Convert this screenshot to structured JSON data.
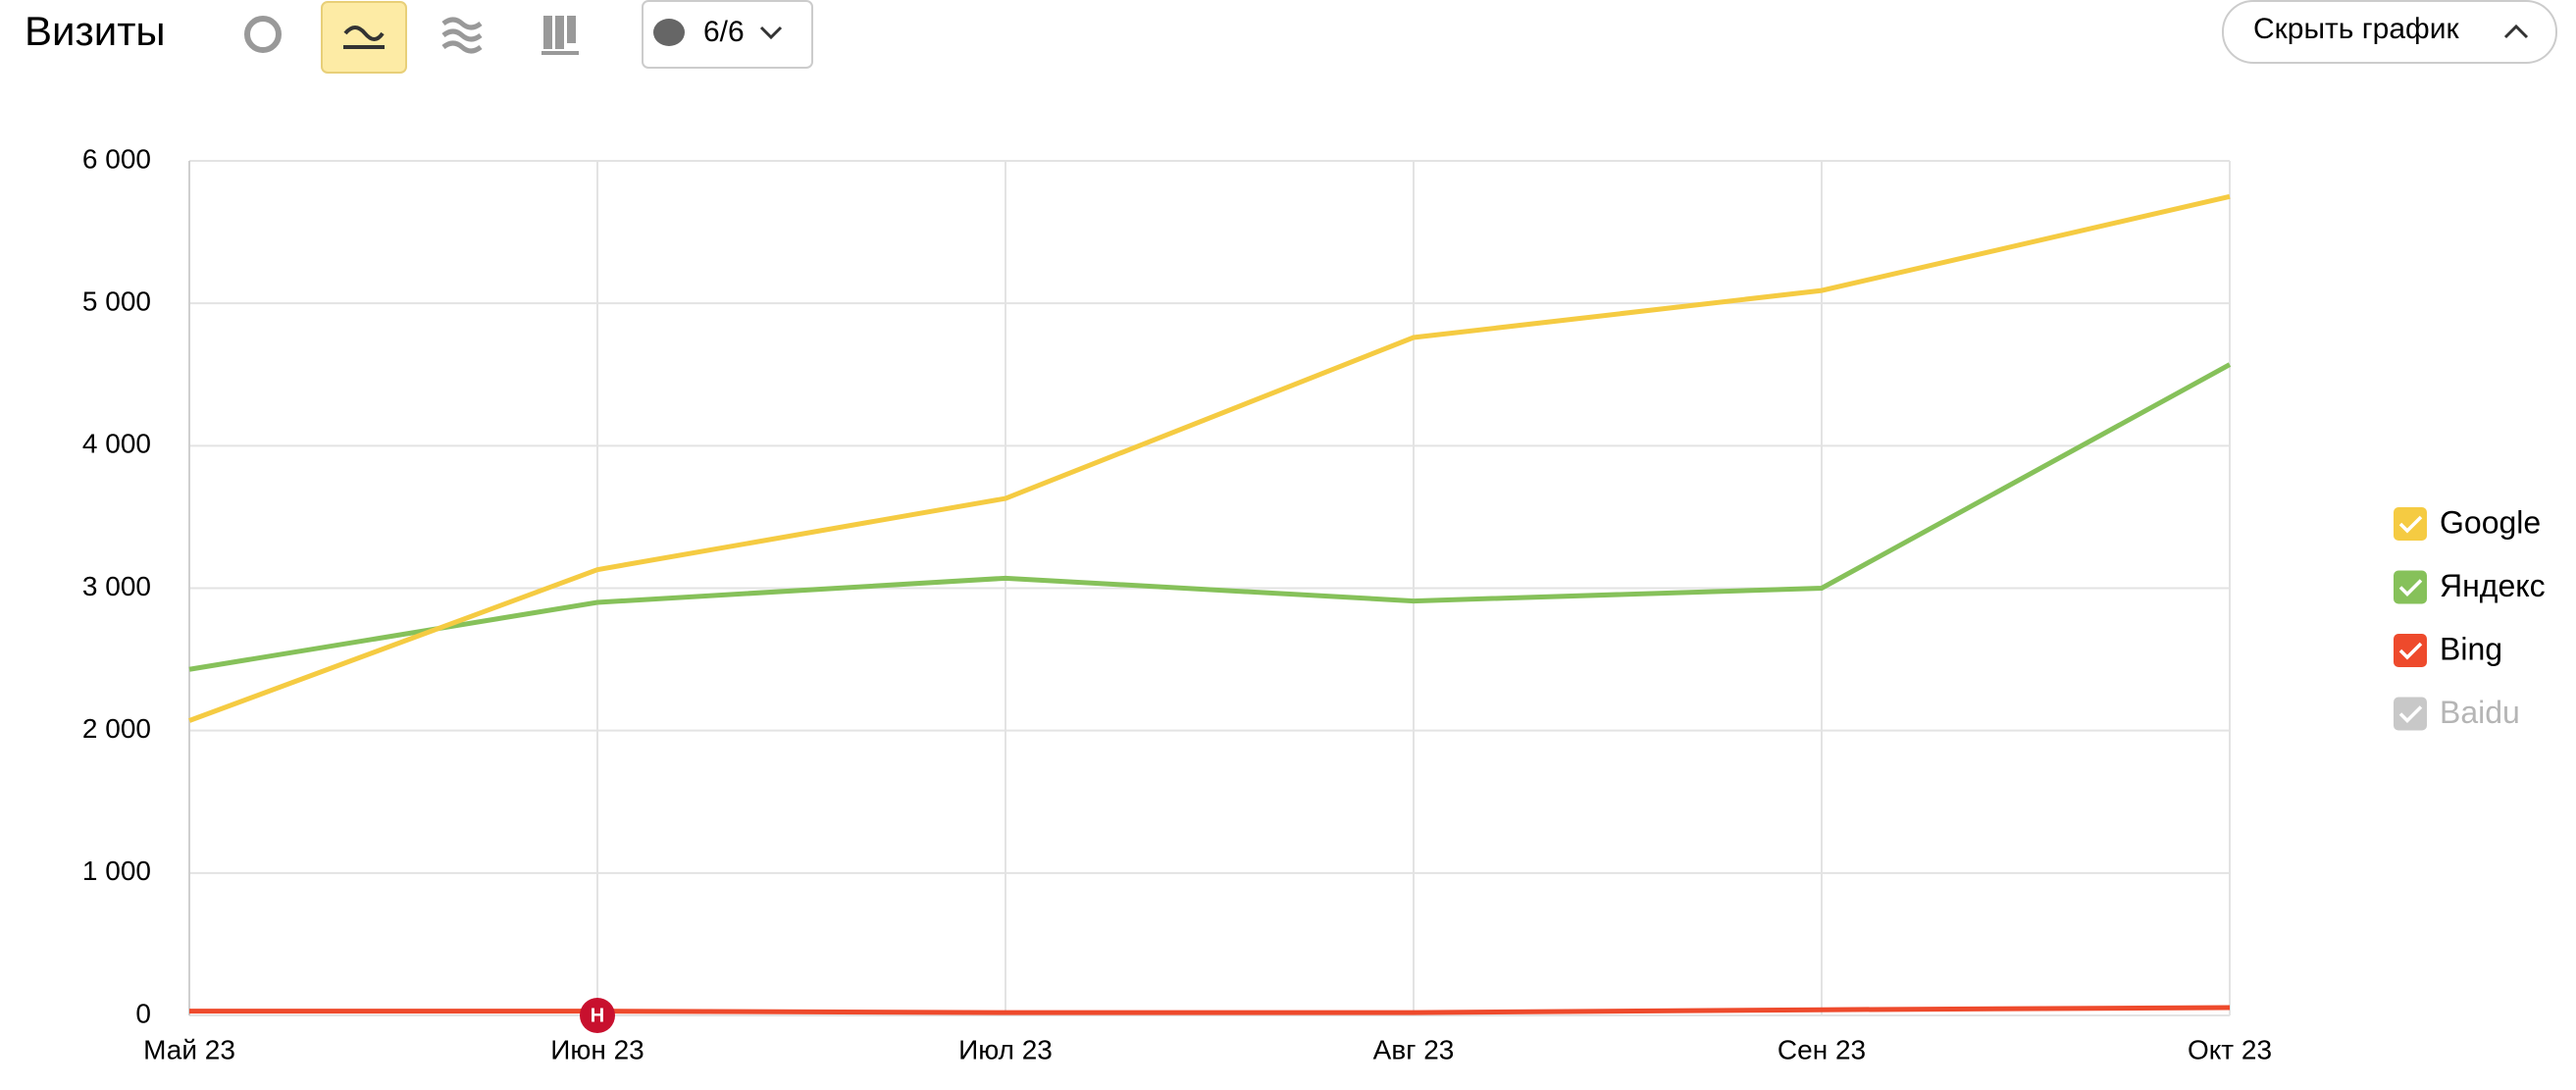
{
  "toolbar": {
    "title": "Визиты",
    "comments": "6/6",
    "hide_button": "Скрыть график"
  },
  "chart_data": {
    "type": "line",
    "categories": [
      "Май 23",
      "Июн 23",
      "Июл 23",
      "Авг 23",
      "Сен 23",
      "Окт 23"
    ],
    "series": [
      {
        "name": "Google",
        "color": "#f5cb42",
        "enabled": true,
        "values": [
          2070,
          3130,
          3630,
          4760,
          5090,
          5750
        ]
      },
      {
        "name": "Яндекс",
        "color": "#86c15a",
        "enabled": true,
        "values": [
          2430,
          2900,
          3070,
          2910,
          3000,
          4570
        ]
      },
      {
        "name": "Bing",
        "color": "#ee4a2c",
        "enabled": true,
        "values": [
          30,
          30,
          20,
          20,
          40,
          55
        ]
      },
      {
        "name": "Baidu",
        "color": "#c8c8c8",
        "enabled": false
      }
    ],
    "ylim": [
      0,
      6000
    ],
    "yticks": [
      0,
      {
        "value": 1000,
        "label": "1 000"
      },
      {
        "value": 2000,
        "label": "2 000"
      },
      {
        "value": 3000,
        "label": "3 000"
      },
      {
        "value": 4000,
        "label": "4 000"
      },
      {
        "value": 5000,
        "label": "5 000"
      },
      {
        "value": 6000,
        "label": "6 000"
      }
    ],
    "grid": true,
    "annotations": [
      {
        "x": "Июн 23",
        "label": "Н"
      }
    ]
  }
}
